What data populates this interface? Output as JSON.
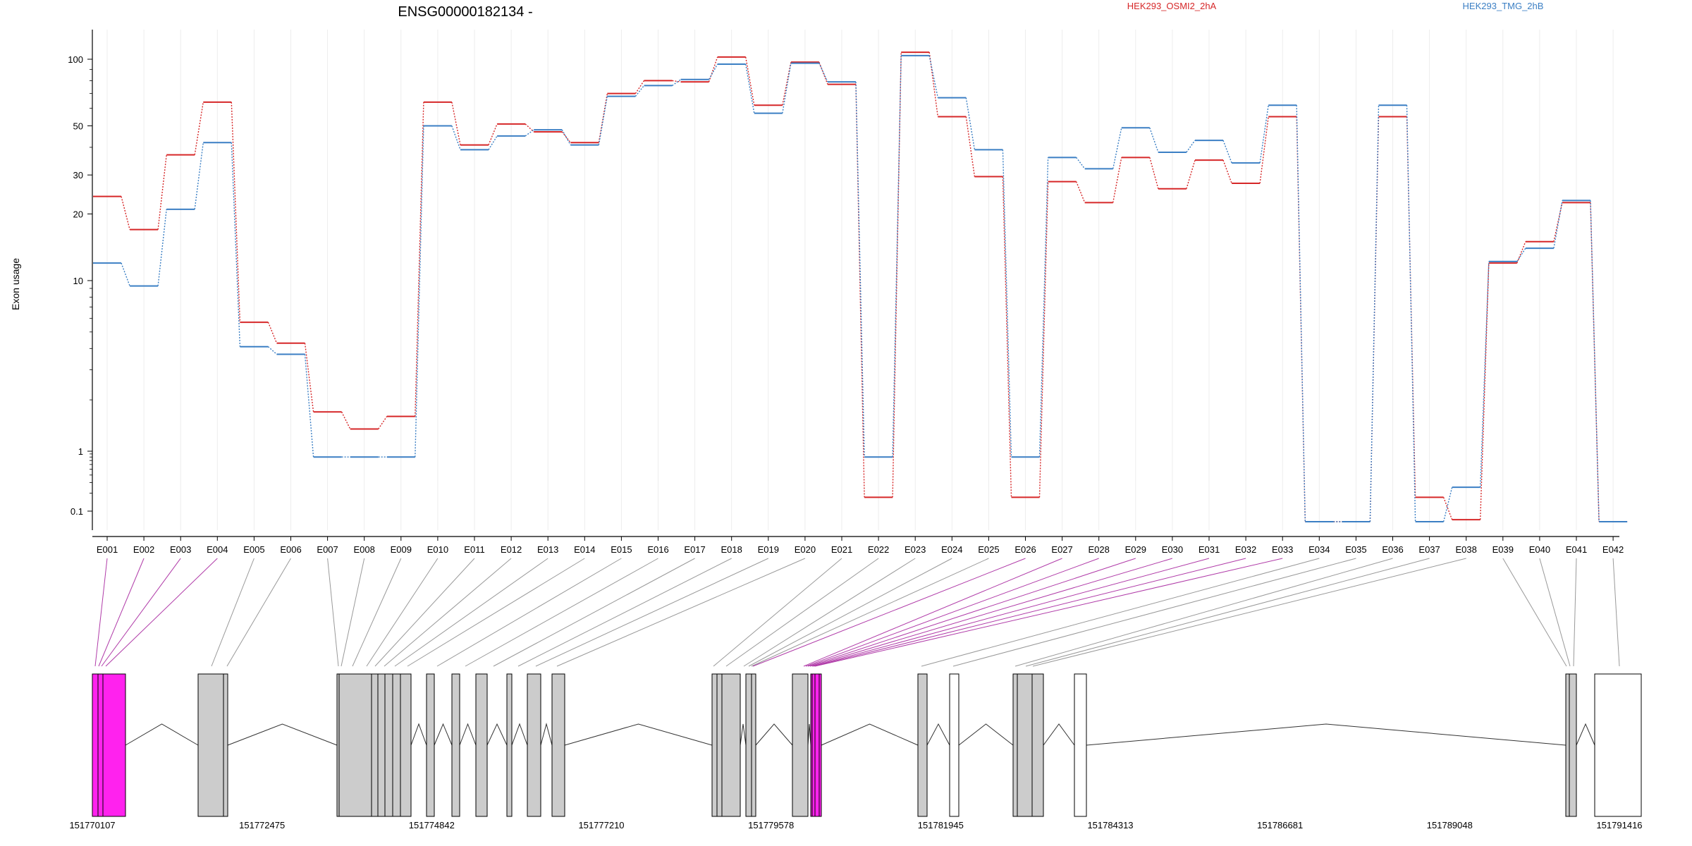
{
  "chart_data": {
    "type": "line",
    "title": "ENSG00000182134 -",
    "ylabel": "Exon usage",
    "y_scale": "log",
    "y_ticks": [
      0.1,
      1,
      10,
      20,
      30,
      50,
      100
    ],
    "y_tick_labels": [
      "0.1",
      "1",
      "10",
      "20",
      "30",
      "50",
      "100"
    ],
    "grid": "vertical",
    "legend_position": "top-right",
    "categories": [
      "E001",
      "E002",
      "E003",
      "E004",
      "E005",
      "E006",
      "E007",
      "E008",
      "E009",
      "E010",
      "E011",
      "E012",
      "E013",
      "E014",
      "E015",
      "E016",
      "E017",
      "E018",
      "E019",
      "E020",
      "E021",
      "E022",
      "E023",
      "E024",
      "E025",
      "E026",
      "E027",
      "E028",
      "E029",
      "E030",
      "E031",
      "E032",
      "E033",
      "E034",
      "E035",
      "E036",
      "E037",
      "E038",
      "E039",
      "E040",
      "E041",
      "E042"
    ],
    "series": [
      {
        "name": "HEK293_OSMI2_2hA",
        "color": "#d62728",
        "values": [
          24,
          17,
          37,
          64,
          5.7,
          4.3,
          1.7,
          1.35,
          1.6,
          64,
          41,
          51,
          47,
          42,
          70,
          80,
          79,
          103,
          62,
          97,
          77,
          0.17,
          110,
          55,
          29.5,
          0.17,
          28,
          22.5,
          36,
          26,
          35,
          27.5,
          55,
          0.07,
          0.07,
          55,
          0.17,
          0.075,
          12,
          15,
          22.5,
          0.07
        ]
      },
      {
        "name": "HEK293_TMG_2hB",
        "color": "#3b7fc4",
        "values": [
          12,
          9.3,
          21,
          42,
          4.1,
          3.7,
          0.8,
          0.8,
          0.8,
          50,
          39,
          45,
          48,
          41,
          68,
          76,
          81,
          95,
          57,
          96,
          79,
          0.8,
          105,
          67,
          39,
          0.8,
          36,
          32,
          49,
          38,
          43,
          34,
          62,
          0.07,
          0.07,
          62,
          0.07,
          0.25,
          12.2,
          14,
          23,
          0.07
        ]
      }
    ]
  },
  "gene_model": {
    "coordinate_labels": [
      "151770107",
      "151772475",
      "151774842",
      "151777210",
      "151779578",
      "151781945",
      "151784313",
      "151786681",
      "151789048",
      "151791416"
    ]
  }
}
